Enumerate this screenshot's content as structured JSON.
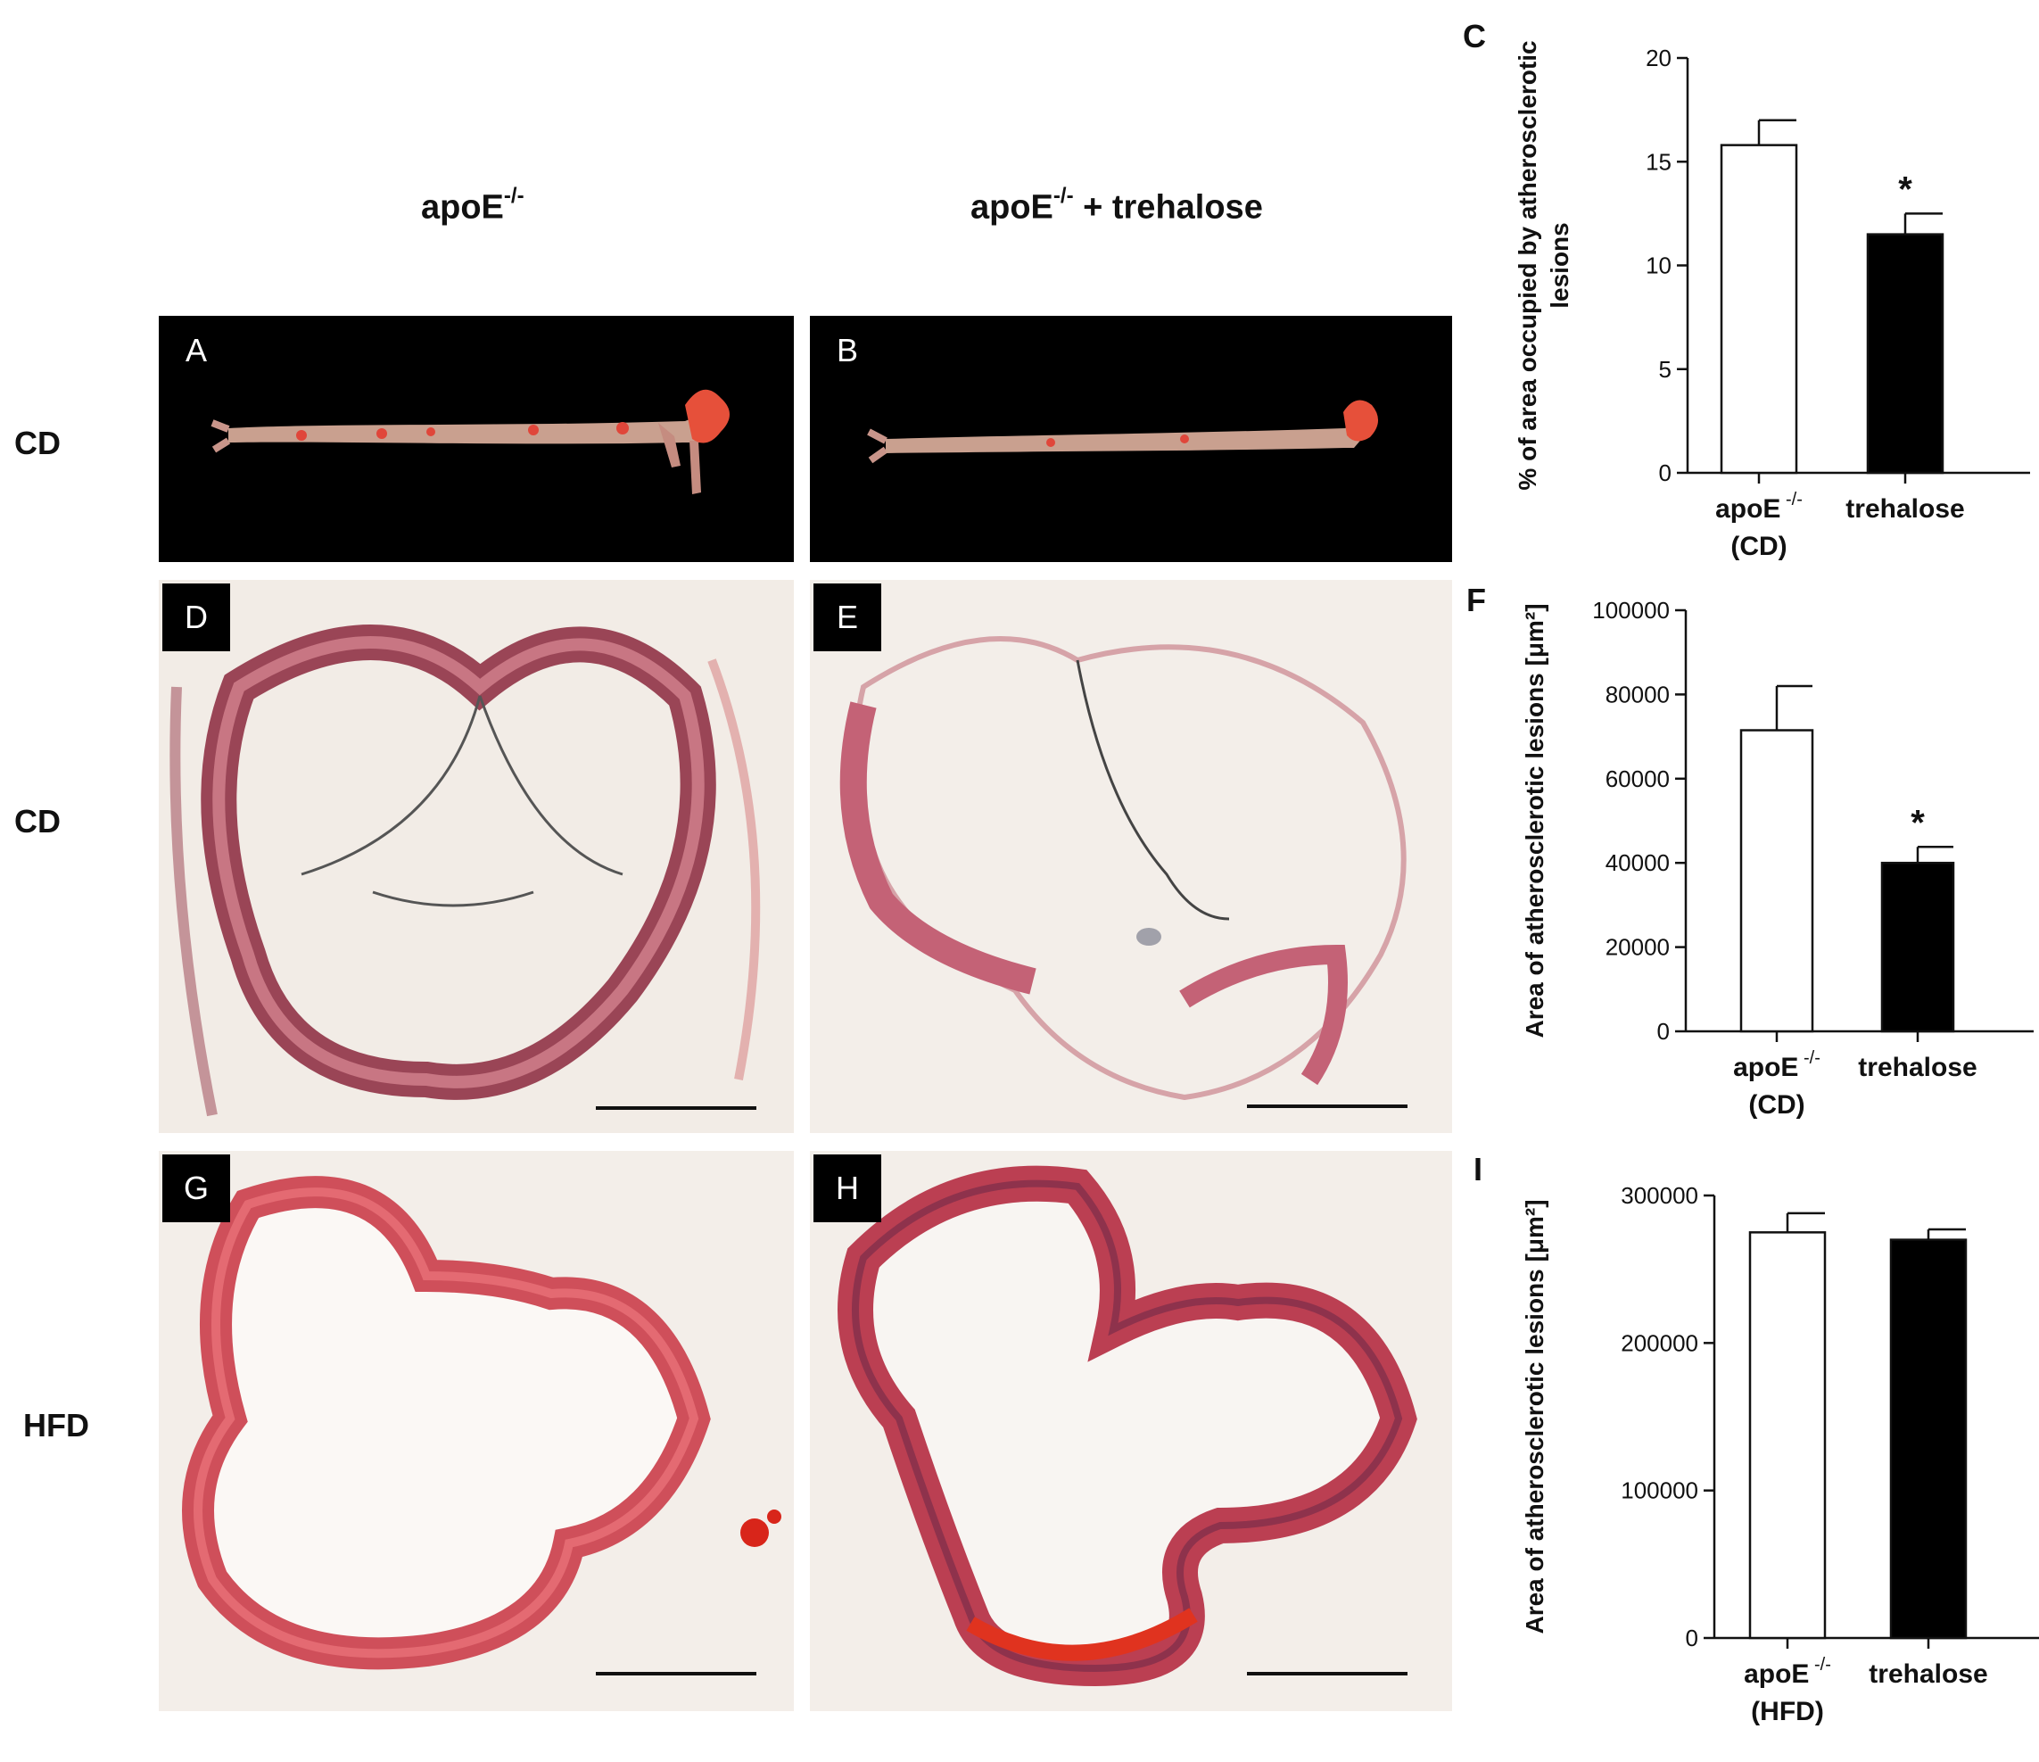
{
  "figure": {
    "column_headers": {
      "left": {
        "main": "apoE",
        "sup": "-/-"
      },
      "right": {
        "main": "apoE",
        "sup": "-/-",
        "tail": " + trehalose"
      }
    },
    "row_labels": [
      "CD",
      "CD",
      "HFD"
    ],
    "panels": {
      "A": "A",
      "B": "B",
      "D": "D",
      "E": "E",
      "G": "G",
      "H": "H"
    },
    "panel_colors": {
      "black_bg": "#000000",
      "tissue_pink": "#c9827a",
      "lesion_red": "#e0463a",
      "stain_dark": "#7a2d3a",
      "section_bg": "#f3eee9"
    }
  },
  "chart_data": [
    {
      "letter": "C",
      "type": "bar",
      "categories": [
        {
          "line1": "apoE",
          "sup": "-/-",
          "line2": "(CD)"
        },
        {
          "line1": "trehalose",
          "sup": "",
          "line2": ""
        }
      ],
      "values": [
        15.8,
        11.5
      ],
      "errors": [
        1.2,
        1.0
      ],
      "fills": [
        "#ffffff",
        "#000000"
      ],
      "significance": [
        "",
        "*"
      ],
      "ylabel_lines": [
        "% of area occupied by atherosclerotic",
        "lesions"
      ],
      "ylim": [
        0,
        20
      ],
      "yticks": [
        0,
        5,
        10,
        15,
        20
      ]
    },
    {
      "letter": "F",
      "type": "bar",
      "categories": [
        {
          "line1": "apoE",
          "sup": "-/-",
          "line2": "(CD)"
        },
        {
          "line1": "trehalose",
          "sup": "",
          "line2": ""
        }
      ],
      "values": [
        71500,
        40000
      ],
      "errors": [
        10500,
        3800
      ],
      "fills": [
        "#ffffff",
        "#000000"
      ],
      "significance": [
        "",
        "*"
      ],
      "ylabel_lines": [
        "Area of atherosclerotic lesions [μm²]"
      ],
      "ylim": [
        0,
        100000
      ],
      "yticks": [
        0,
        20000,
        40000,
        60000,
        80000,
        100000
      ]
    },
    {
      "letter": "I",
      "type": "bar",
      "categories": [
        {
          "line1": "apoE",
          "sup": "-/-",
          "line2": "(HFD)"
        },
        {
          "line1": "trehalose",
          "sup": "",
          "line2": ""
        }
      ],
      "values": [
        275000,
        270000
      ],
      "errors": [
        13000,
        7000
      ],
      "fills": [
        "#ffffff",
        "#000000"
      ],
      "significance": [
        "",
        ""
      ],
      "ylabel_lines": [
        "Area of atherosclerotic lesions [μm²]"
      ],
      "ylim": [
        0,
        300000
      ],
      "yticks": [
        0,
        100000,
        200000,
        300000
      ]
    }
  ]
}
